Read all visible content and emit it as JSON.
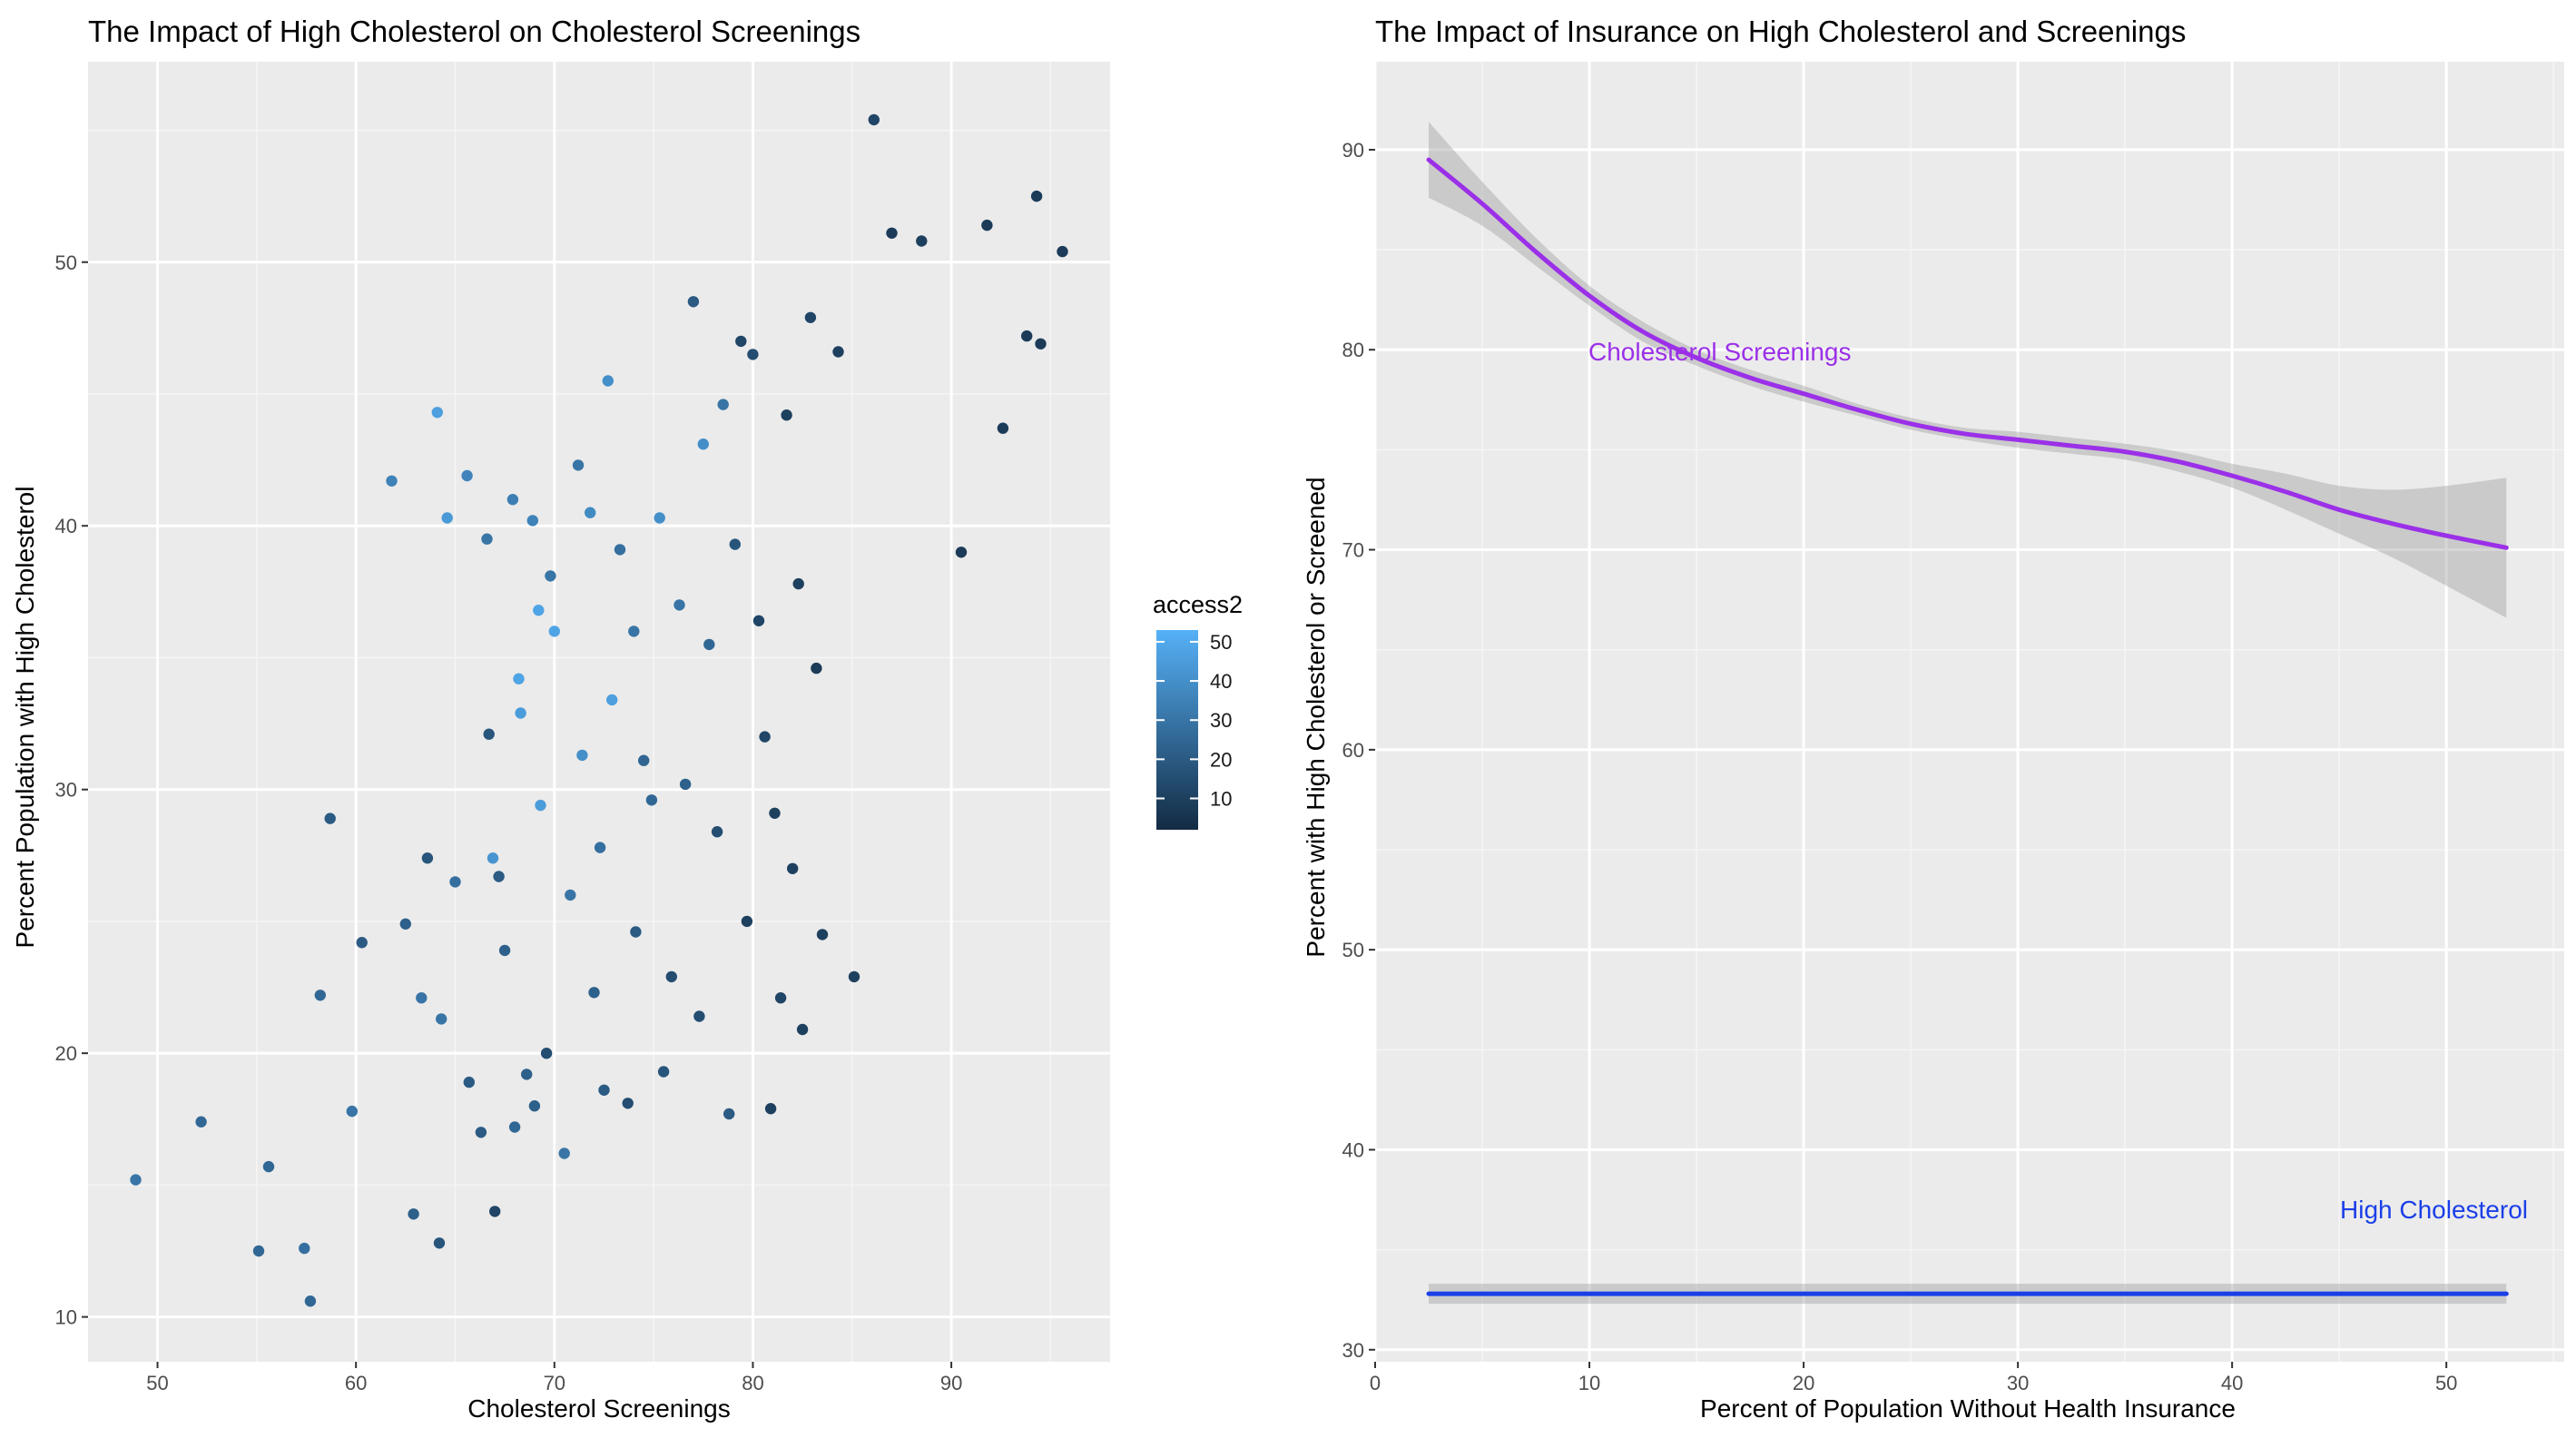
{
  "chart_data": [
    {
      "type": "scatter",
      "title": "The Impact of High Cholesterol on Cholesterol Screenings",
      "xlabel": "Cholesterol Screenings",
      "ylabel": "Percent Population with High Cholesterol",
      "xlim": [
        46.5,
        98
      ],
      "ylim": [
        8.3,
        57.6
      ],
      "xticks": [
        "50",
        "60",
        "70",
        "80",
        "90"
      ],
      "yticks": [
        "10",
        "20",
        "30",
        "40",
        "50"
      ],
      "grid": true,
      "legend": {
        "title": "access2",
        "labels": [
          "50",
          "40",
          "30",
          "20",
          "10"
        ],
        "range": [
          2,
          53
        ],
        "color_low": "#132b43",
        "color_high": "#56b1f7",
        "placement": "right"
      },
      "points": [
        [
          48.9,
          15.2,
          30
        ],
        [
          52.2,
          17.4,
          25
        ],
        [
          55.1,
          12.5,
          25
        ],
        [
          55.6,
          15.7,
          25
        ],
        [
          57.4,
          12.6,
          28
        ],
        [
          57.7,
          10.6,
          25
        ],
        [
          58.2,
          22.2,
          25
        ],
        [
          58.7,
          28.9,
          20
        ],
        [
          59.8,
          17.8,
          30
        ],
        [
          60.3,
          24.2,
          20
        ],
        [
          61.8,
          41.7,
          35
        ],
        [
          62.5,
          24.9,
          22
        ],
        [
          62.9,
          13.9,
          22
        ],
        [
          63.3,
          22.1,
          30
        ],
        [
          63.6,
          27.4,
          18
        ],
        [
          64.1,
          44.3,
          46
        ],
        [
          64.2,
          12.8,
          18
        ],
        [
          64.3,
          21.3,
          30
        ],
        [
          64.6,
          40.3,
          44
        ],
        [
          65.0,
          26.5,
          28
        ],
        [
          65.6,
          41.9,
          36
        ],
        [
          65.7,
          18.9,
          20
        ],
        [
          66.3,
          17.0,
          20
        ],
        [
          66.6,
          39.5,
          30
        ],
        [
          66.7,
          32.1,
          18
        ],
        [
          66.9,
          27.4,
          42
        ],
        [
          67.0,
          14.0,
          12
        ],
        [
          67.2,
          26.7,
          20
        ],
        [
          67.5,
          23.9,
          22
        ],
        [
          67.9,
          41.0,
          34
        ],
        [
          68.0,
          17.2,
          25
        ],
        [
          68.2,
          34.2,
          48
        ],
        [
          68.3,
          32.9,
          45
        ],
        [
          68.6,
          19.2,
          22
        ],
        [
          68.9,
          40.2,
          35
        ],
        [
          69.0,
          18.0,
          22
        ],
        [
          69.2,
          36.8,
          48
        ],
        [
          69.3,
          29.4,
          45
        ],
        [
          69.6,
          20.0,
          15
        ],
        [
          69.8,
          38.1,
          30
        ],
        [
          70.0,
          36.0,
          48
        ],
        [
          70.5,
          16.2,
          30
        ],
        [
          70.8,
          26.0,
          30
        ],
        [
          71.2,
          42.3,
          30
        ],
        [
          71.4,
          31.3,
          40
        ],
        [
          71.8,
          40.5,
          38
        ],
        [
          72.0,
          22.3,
          22
        ],
        [
          72.3,
          27.8,
          28
        ],
        [
          72.5,
          18.6,
          20
        ],
        [
          72.7,
          45.5,
          40
        ],
        [
          72.9,
          33.4,
          46
        ],
        [
          73.3,
          39.1,
          28
        ],
        [
          73.7,
          18.1,
          15
        ],
        [
          74.0,
          36.0,
          30
        ],
        [
          74.1,
          24.6,
          20
        ],
        [
          74.5,
          31.1,
          24
        ],
        [
          74.9,
          29.6,
          25
        ],
        [
          75.3,
          40.3,
          40
        ],
        [
          75.5,
          19.3,
          18
        ],
        [
          75.9,
          22.9,
          15
        ],
        [
          76.3,
          37.0,
          30
        ],
        [
          76.6,
          30.2,
          22
        ],
        [
          77.0,
          48.5,
          20
        ],
        [
          77.3,
          21.4,
          15
        ],
        [
          77.5,
          43.1,
          40
        ],
        [
          77.8,
          35.5,
          25
        ],
        [
          78.2,
          28.4,
          15
        ],
        [
          78.5,
          44.6,
          30
        ],
        [
          78.8,
          17.7,
          20
        ],
        [
          79.1,
          39.3,
          18
        ],
        [
          79.4,
          47.0,
          12
        ],
        [
          79.7,
          25.0,
          10
        ],
        [
          80.0,
          46.5,
          15
        ],
        [
          80.3,
          36.4,
          12
        ],
        [
          80.6,
          32.0,
          12
        ],
        [
          80.9,
          17.9,
          10
        ],
        [
          81.1,
          29.1,
          10
        ],
        [
          81.4,
          22.1,
          12
        ],
        [
          81.7,
          44.2,
          10
        ],
        [
          82.0,
          27.0,
          10
        ],
        [
          82.3,
          37.8,
          10
        ],
        [
          82.5,
          20.9,
          10
        ],
        [
          82.9,
          47.9,
          12
        ],
        [
          83.2,
          34.6,
          8
        ],
        [
          83.5,
          24.5,
          10
        ],
        [
          84.3,
          46.6,
          10
        ],
        [
          85.1,
          22.9,
          10
        ],
        [
          86.1,
          55.4,
          12
        ],
        [
          87.0,
          51.1,
          8
        ],
        [
          88.5,
          50.8,
          10
        ],
        [
          91.8,
          51.4,
          8
        ],
        [
          94.3,
          52.5,
          8
        ],
        [
          95.6,
          50.4,
          8
        ],
        [
          93.8,
          47.2,
          8
        ],
        [
          94.5,
          46.9,
          8
        ],
        [
          92.6,
          43.7,
          8
        ],
        [
          90.5,
          39.0,
          8
        ]
      ]
    },
    {
      "type": "line",
      "title": "The Impact of Insurance on High Cholesterol and Screenings",
      "xlabel": "Percent of Population Without Health Insurance",
      "ylabel": "Percent with High Cholesterol or Screened",
      "xlim": [
        0,
        55.5
      ],
      "ylim": [
        29.4,
        94.4
      ],
      "xticks": [
        "0",
        "10",
        "20",
        "30",
        "40",
        "50"
      ],
      "yticks": [
        "30",
        "40",
        "50",
        "60",
        "70",
        "80",
        "90"
      ],
      "grid": true,
      "series": [
        {
          "name": "Cholesterol Screenings",
          "color": "#9b30e8",
          "x": [
            2.5,
            5,
            7.5,
            10,
            12.5,
            15,
            17.5,
            20,
            22.5,
            25,
            27.5,
            30,
            32.5,
            35,
            37.5,
            40,
            42.5,
            45,
            47.5,
            50,
            52.8
          ],
          "y": [
            89.5,
            87.3,
            84.9,
            82.7,
            80.9,
            79.6,
            78.6,
            77.8,
            77.0,
            76.3,
            75.8,
            75.5,
            75.2,
            74.9,
            74.4,
            73.7,
            72.9,
            72.0,
            71.3,
            70.7,
            70.1
          ],
          "ci_lower": [
            87.6,
            86.2,
            84.2,
            82.2,
            80.4,
            79.2,
            78.2,
            77.4,
            76.7,
            76.0,
            75.5,
            75.1,
            74.8,
            74.5,
            73.9,
            73.1,
            72.0,
            70.8,
            69.6,
            68.2,
            66.6
          ],
          "ci_upper": [
            91.4,
            88.4,
            85.6,
            83.2,
            81.4,
            80.0,
            79.0,
            78.2,
            77.3,
            76.6,
            76.1,
            75.9,
            75.6,
            75.3,
            74.9,
            74.3,
            73.8,
            73.2,
            73.0,
            73.2,
            73.6
          ]
        },
        {
          "name": "High Cholesterol",
          "color": "#1a3fe8",
          "x": [
            2.5,
            52.8
          ],
          "y": [
            32.8,
            32.8
          ],
          "ci_lower": [
            32.3,
            32.3
          ],
          "ci_upper": [
            33.3,
            33.3
          ]
        }
      ]
    }
  ]
}
